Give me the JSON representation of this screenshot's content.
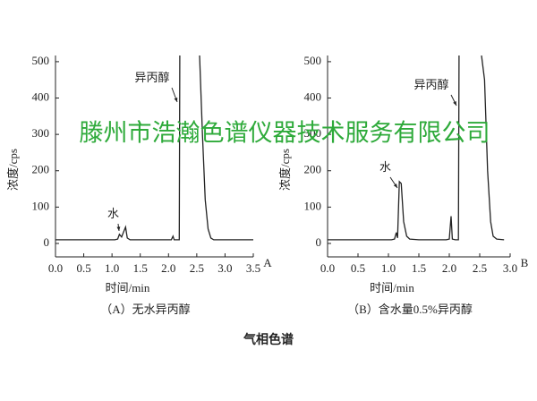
{
  "chart_data": [
    {
      "type": "line",
      "title": "（A）无水异丙醇",
      "panel_label": "A",
      "xlabel": "时间/min",
      "ylabel": "浓度/cps",
      "color": "#222222",
      "xlim": [
        0,
        3.5
      ],
      "ylim": [
        -37,
        517
      ],
      "xticks": [
        {
          "value": 0,
          "label": "0.0"
        },
        {
          "value": 0.5,
          "label": "0.5"
        },
        {
          "value": 1,
          "label": "1.0"
        },
        {
          "value": 1.5,
          "label": "1.5"
        },
        {
          "value": 2,
          "label": "2.0"
        },
        {
          "value": 2.5,
          "label": "2.5"
        },
        {
          "value": 3,
          "label": "3.0"
        },
        {
          "value": 3.5,
          "label": "3.5"
        }
      ],
      "yticks": [
        0,
        100,
        200,
        300,
        400,
        500
      ],
      "x": [
        0,
        1.05,
        1.1,
        1.13,
        1.17,
        1.2,
        1.24,
        1.27,
        1.32,
        2.05,
        2.08,
        2.1,
        2.15,
        2.19,
        2.2,
        2.5,
        2.55,
        2.6,
        2.65,
        2.7,
        2.75,
        2.8,
        2.9,
        3.5
      ],
      "values": [
        10,
        10,
        12,
        25,
        18,
        30,
        45,
        15,
        10,
        10,
        20,
        10,
        10,
        10,
        517,
        null,
        517,
        300,
        120,
        40,
        15,
        10,
        10,
        10
      ],
      "annotations": [
        "水",
        "异丙醇"
      ]
    },
    {
      "type": "line",
      "title": "（B）含水量0.5%异丙醇",
      "panel_label": "B",
      "xlabel": "时间/min",
      "ylabel": "浓度/cps",
      "color": "#222222",
      "xlim": [
        0,
        3.0
      ],
      "ylim": [
        -37,
        517
      ],
      "xticks": [
        {
          "value": 0,
          "label": "0.0"
        },
        {
          "value": 0.5,
          "label": "0.5"
        },
        {
          "value": 1,
          "label": "1.0"
        },
        {
          "value": 1.5,
          "label": "1.5"
        },
        {
          "value": 2,
          "label": "2.0"
        },
        {
          "value": 2.5,
          "label": "2.5"
        },
        {
          "value": 3,
          "label": "3.0"
        }
      ],
      "yticks": [
        0,
        100,
        200,
        300,
        400,
        500
      ],
      "x": [
        0,
        1.05,
        1.1,
        1.13,
        1.15,
        1.18,
        1.21,
        1.25,
        1.3,
        1.35,
        1.5,
        1.95,
        2.0,
        2.03,
        2.05,
        2.1,
        2.15,
        2.16,
        2.5,
        2.53,
        2.58,
        2.63,
        2.68,
        2.72,
        2.78,
        2.9
      ],
      "values": [
        10,
        10,
        12,
        30,
        15,
        170,
        165,
        60,
        20,
        12,
        10,
        10,
        12,
        75,
        12,
        10,
        10,
        517,
        null,
        517,
        450,
        200,
        60,
        20,
        12,
        10
      ],
      "annotations": [
        "水",
        "异丙醇"
      ]
    }
  ],
  "caption": "气相色谱",
  "watermark": "滕州市浩瀚色谱仪器技术服务有限公司"
}
